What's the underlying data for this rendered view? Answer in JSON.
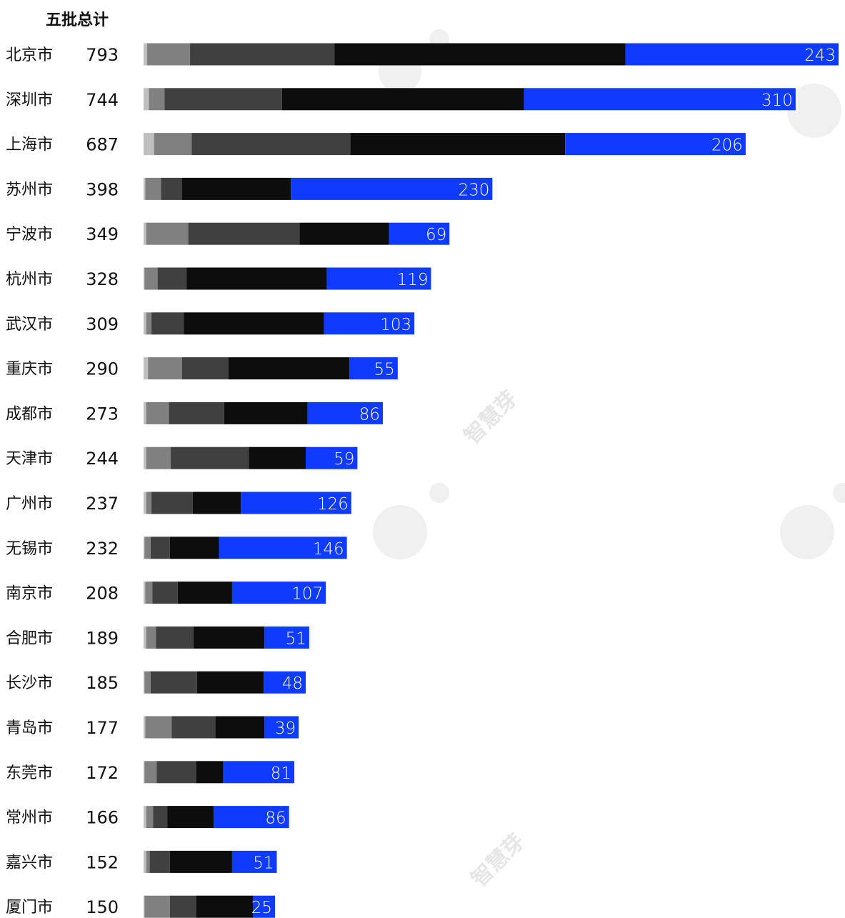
{
  "chart_data": {
    "type": "bar",
    "orientation": "horizontal",
    "stacked": true,
    "title": "五批总计",
    "categories": [
      "北京市",
      "深圳市",
      "上海市",
      "苏州市",
      "宁波市",
      "杭州市",
      "武汉市",
      "重庆市",
      "成都市",
      "天津市",
      "广州市",
      "无锡市",
      "南京市",
      "合肥市",
      "长沙市",
      "青岛市",
      "东莞市",
      "常州市",
      "嘉兴市",
      "厦门市"
    ],
    "totals": [
      793,
      744,
      687,
      398,
      349,
      328,
      309,
      290,
      273,
      244,
      237,
      232,
      208,
      189,
      185,
      177,
      172,
      166,
      152,
      150
    ],
    "series": [
      {
        "color": "#bfbfbf",
        "values": [
          4,
          6,
          12,
          2,
          3,
          1,
          3,
          5,
          3,
          3,
          3,
          1,
          2,
          3,
          1,
          2,
          1,
          3,
          3,
          1
        ]
      },
      {
        "color": "#808080",
        "values": [
          49,
          18,
          43,
          18,
          48,
          15,
          6,
          39,
          26,
          28,
          6,
          7,
          8,
          11,
          7,
          30,
          14,
          8,
          4,
          29
        ]
      },
      {
        "color": "#404040",
        "values": [
          165,
          134,
          181,
          24,
          127,
          33,
          37,
          53,
          63,
          89,
          47,
          22,
          29,
          43,
          53,
          50,
          45,
          16,
          23,
          30
        ]
      },
      {
        "color": "#0d0d0d",
        "values": [
          332,
          276,
          245,
          124,
          102,
          160,
          160,
          138,
          95,
          65,
          55,
          56,
          62,
          81,
          76,
          56,
          31,
          53,
          71,
          65
        ]
      },
      {
        "color": "#0f3bff",
        "values": [
          243,
          310,
          206,
          230,
          69,
          119,
          103,
          55,
          86,
          59,
          126,
          146,
          107,
          51,
          48,
          39,
          81,
          86,
          51,
          25
        ]
      }
    ],
    "value_labels": [
      243,
      310,
      206,
      230,
      69,
      119,
      103,
      55,
      86,
      59,
      126,
      146,
      107,
      51,
      48,
      39,
      81,
      86,
      51,
      25
    ],
    "watermark": "智慧芽",
    "legend": "none",
    "grid": false
  }
}
